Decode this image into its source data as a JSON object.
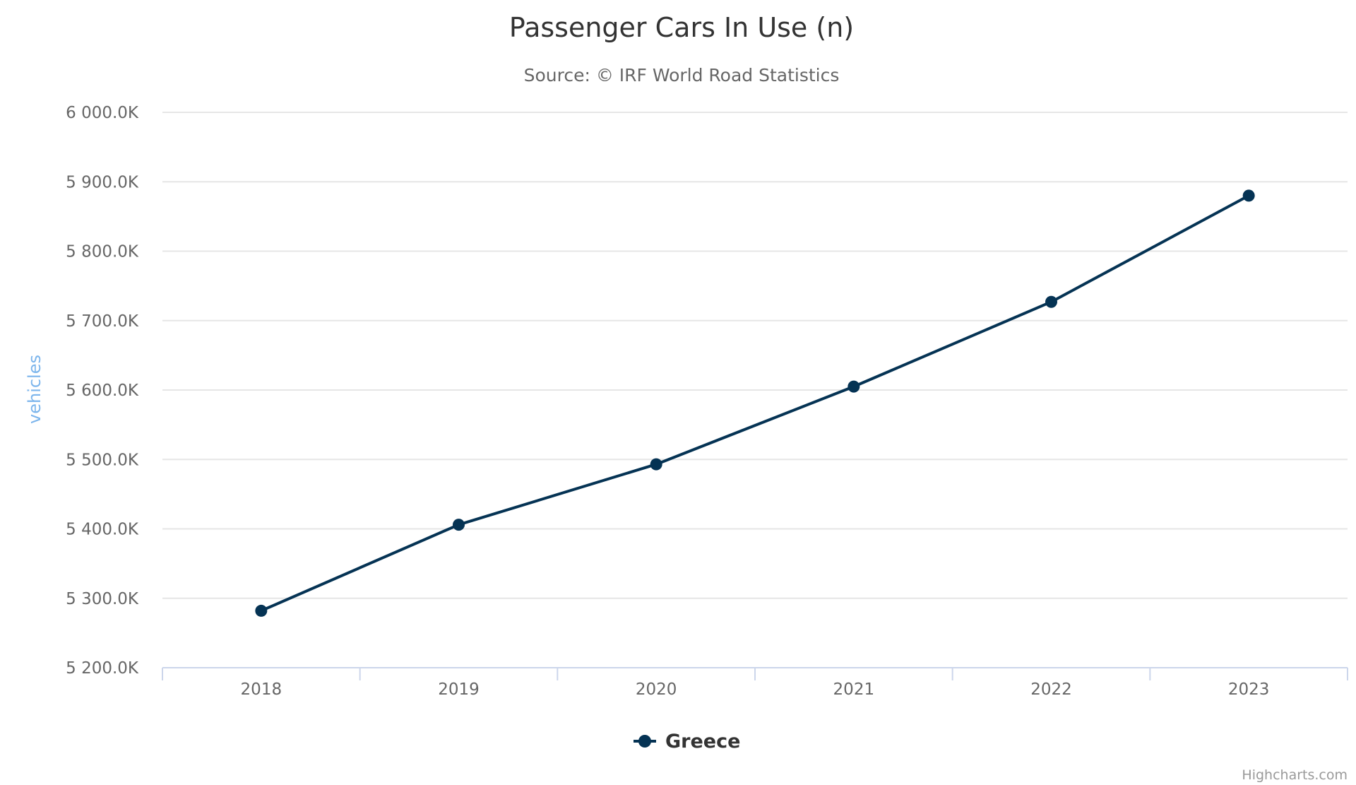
{
  "chart_data": {
    "type": "line",
    "title": "Passenger Cars In Use (n)",
    "subtitle": "Source: © IRF World Road Statistics",
    "ylabel": "vehicles",
    "xlabel": "",
    "categories": [
      "2018",
      "2019",
      "2020",
      "2021",
      "2022",
      "2023"
    ],
    "series": [
      {
        "name": "Greece",
        "values": [
          5282000,
          5406000,
          5493000,
          5605000,
          5727000,
          5880000
        ],
        "color": "#053354"
      }
    ],
    "ylim": [
      5200000,
      6000000
    ],
    "yticks": [
      {
        "value": 5200000,
        "label": "5 200.0K"
      },
      {
        "value": 5300000,
        "label": "5 300.0K"
      },
      {
        "value": 5400000,
        "label": "5 400.0K"
      },
      {
        "value": 5500000,
        "label": "5 500.0K"
      },
      {
        "value": 5600000,
        "label": "5 600.0K"
      },
      {
        "value": 5700000,
        "label": "5 700.0K"
      },
      {
        "value": 5800000,
        "label": "5 800.0K"
      },
      {
        "value": 5900000,
        "label": "5 900.0K"
      },
      {
        "value": 6000000,
        "label": "6 000.0K"
      }
    ],
    "grid": true,
    "legend_position": "bottom-center",
    "colors": {
      "series": "#053354",
      "gridline": "#e6e6e6",
      "axis_line": "#ccd6eb",
      "ylabel": "#7cb5ec",
      "title": "#333333",
      "subtitle": "#666666",
      "ticks": "#666666",
      "credits": "#999999"
    }
  },
  "credits": "Highcharts.com"
}
